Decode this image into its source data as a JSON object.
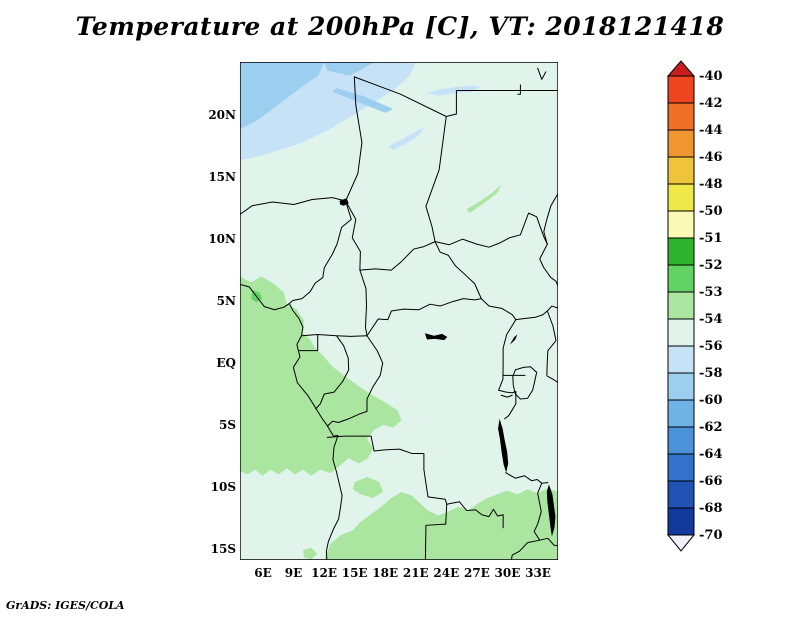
{
  "title": "Temperature at 200hPa [C], VT: 2018121418",
  "attribution": "GrADS: IGES/COLA",
  "map": {
    "lat_ticks": [
      "20N",
      "15N",
      "10N",
      "5N",
      "EQ",
      "5S",
      "10S",
      "15S"
    ],
    "lon_ticks": [
      "6E",
      "9E",
      "12E",
      "15E",
      "18E",
      "21E",
      "24E",
      "27E",
      "30E",
      "33E"
    ]
  },
  "colorbar": {
    "labels": [
      "-40",
      "-42",
      "-44",
      "-46",
      "-48",
      "-50",
      "-51",
      "-52",
      "-53",
      "-54",
      "-56",
      "-58",
      "-60",
      "-62",
      "-64",
      "-66",
      "-68",
      "-70"
    ],
    "colors": [
      "#c81e1e",
      "#ef4420",
      "#f07028",
      "#f09630",
      "#f0c33c",
      "#efe84b",
      "#fafab4",
      "#2eb42e",
      "#62d262",
      "#aae6a0",
      "#e1f4eb",
      "#c6e2f6",
      "#9ccef0",
      "#6fb2e6",
      "#4b92d8",
      "#3272ca",
      "#2153b4",
      "#12389b",
      "#f0f0fa"
    ]
  },
  "chart_data": {
    "type": "heatmap",
    "title": "Temperature at 200hPa [C], VT: 2018121418",
    "variable": "Temperature",
    "level_hPa": 200,
    "units": "C",
    "valid_time": "2018121418",
    "extent": {
      "lon_min_E": 3.7,
      "lon_max_E": 35.0,
      "lat_min_N": -15.9,
      "lat_max_N": 24.3
    },
    "x_tick_labels": [
      "6E",
      "9E",
      "12E",
      "15E",
      "18E",
      "21E",
      "24E",
      "27E",
      "30E",
      "33E"
    ],
    "y_tick_labels": [
      "20N",
      "15N",
      "10N",
      "5N",
      "EQ",
      "5S",
      "10S",
      "15S"
    ],
    "grid": false,
    "legend_position": "right",
    "colorbar": {
      "orientation": "vertical",
      "level_boundaries": [
        -40,
        -42,
        -44,
        -46,
        -48,
        -50,
        -51,
        -52,
        -53,
        -54,
        -56,
        -58,
        -60,
        -62,
        -64,
        -66,
        -68,
        -70
      ],
      "band_colors_top_to_bottom": [
        "#c81e1e",
        "#ef4420",
        "#f07028",
        "#f09630",
        "#f0c33c",
        "#efe84b",
        "#fafab4",
        "#2eb42e",
        "#62d262",
        "#aae6a0",
        "#e1f4eb",
        "#c6e2f6",
        "#9ccef0",
        "#6fb2e6",
        "#4b92d8",
        "#3272ca",
        "#2153b4",
        "#12389b",
        "#f0f0fa"
      ],
      "top_arrow_meaning": "warmer than -40 C",
      "bottom_arrow_meaning": "colder than -70 C"
    },
    "shaded_field_summary": [
      {
        "band_C": "-54 to -56",
        "color": "#e1f4eb",
        "where": "background over most of the domain"
      },
      {
        "band_C": "-53 to -54",
        "color": "#aae6a0",
        "where": "southwest quadrant (~4E-20E, 7N-9S over Gulf of Guinea, Cameroon, Gabon, Congo basin); southern band ~12E-35E south of ~10S; thin streak ~26E-29E near 12N-14N; small spot near 10E,15S; patch ~15E-18E,9S-11S"
      },
      {
        "band_C": "-52 to -53",
        "color": "#62d262",
        "where": "small spot near 5E,5N"
      },
      {
        "band_C": "-56 to -58",
        "color": "#c6e2f6",
        "where": "band north of ~16N from west edge to ~21E; isolated streaks near 22E-27E,22N and 18E-22E,17N-19N"
      },
      {
        "band_C": "-58 to -60",
        "color": "#9ccef0",
        "where": "patches in far northwest corner (~4E-17E, 19N-24N)"
      }
    ],
    "annotations": [
      "GrADS: IGES/COLA"
    ]
  }
}
